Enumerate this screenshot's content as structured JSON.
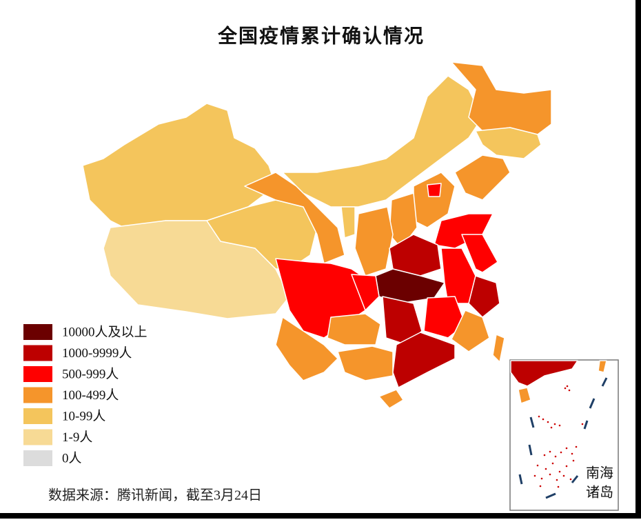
{
  "title": "全国疫情累计确认情况",
  "legend": [
    {
      "label": "10000人及以上",
      "color": "#6b0000"
    },
    {
      "label": "1000-9999人",
      "color": "#bd0000"
    },
    {
      "label": "500-999人",
      "color": "#ff0000"
    },
    {
      "label": "100-499人",
      "color": "#f5952b"
    },
    {
      "label": "10-99人",
      "color": "#f4c55c"
    },
    {
      "label": "1-9人",
      "color": "#f7da95"
    },
    {
      "label": "0人",
      "color": "#dcdcdc"
    }
  ],
  "source": "数据来源：腾讯新闻，截至3月24日",
  "inset_label": [
    "南海",
    "诸岛"
  ]
}
